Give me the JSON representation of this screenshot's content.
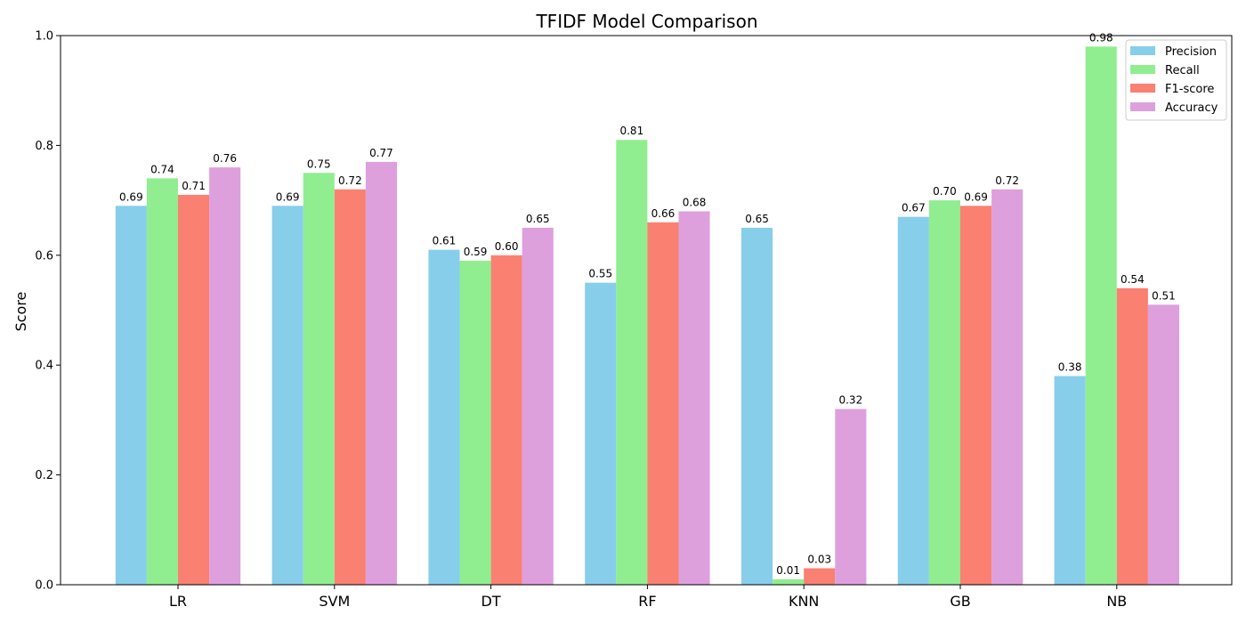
{
  "chart_data": {
    "type": "bar",
    "title": "TFIDF Model Comparison",
    "xlabel": "",
    "ylabel": "Score",
    "ylim": [
      0,
      1.0
    ],
    "yticks": [
      "0.0",
      "0.2",
      "0.4",
      "0.6",
      "0.8",
      "1.0"
    ],
    "categories": [
      "LR",
      "SVM",
      "DT",
      "RF",
      "KNN",
      "GB",
      "NB"
    ],
    "series": [
      {
        "name": "Precision",
        "color": "#87CEEB",
        "values": [
          0.69,
          0.69,
          0.61,
          0.55,
          0.65,
          0.67,
          0.38
        ]
      },
      {
        "name": "Recall",
        "color": "#90EE90",
        "values": [
          0.74,
          0.75,
          0.59,
          0.81,
          0.01,
          0.7,
          0.98
        ]
      },
      {
        "name": "F1-score",
        "color": "#FA8072",
        "values": [
          0.71,
          0.72,
          0.6,
          0.66,
          0.03,
          0.69,
          0.54
        ]
      },
      {
        "name": "Accuracy",
        "color": "#DDA0DD",
        "values": [
          0.76,
          0.77,
          0.65,
          0.68,
          0.32,
          0.72,
          0.51
        ]
      }
    ],
    "data_labels": true,
    "legend_position": "top-right",
    "grid": false
  }
}
